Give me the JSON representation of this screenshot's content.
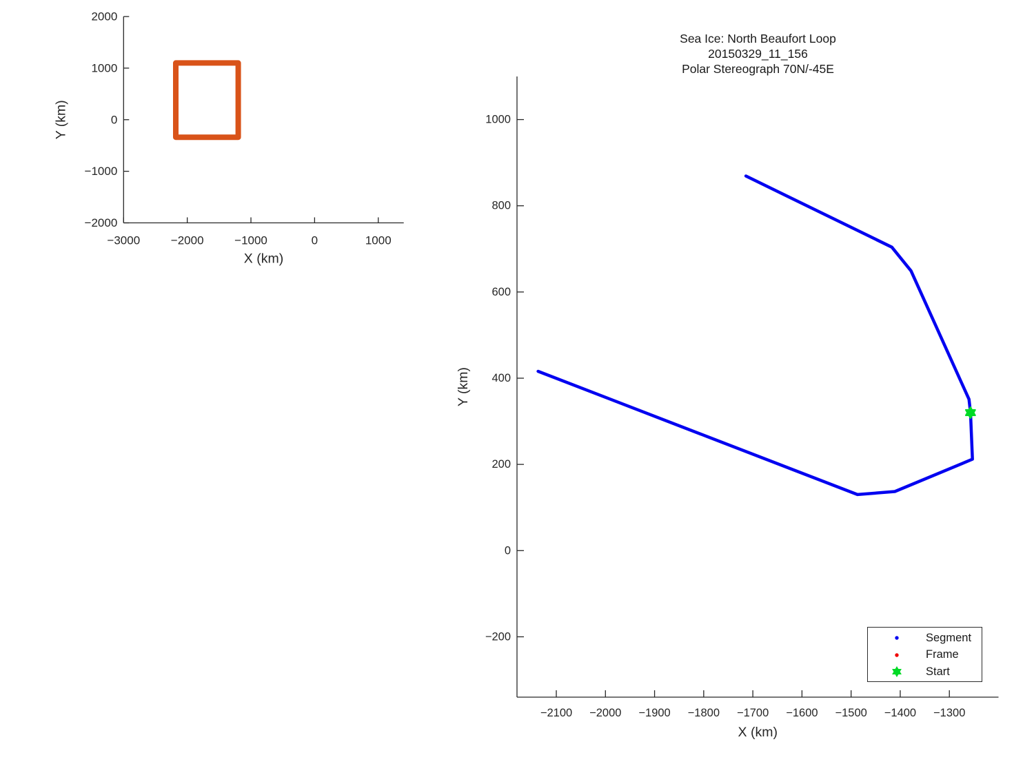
{
  "figure": {
    "background": "#ffffff",
    "axis_color": "#262626",
    "text_color": "#262626"
  },
  "chart_data": [
    {
      "id": "overview",
      "type": "line",
      "title_lines": [],
      "xlabel": "X (km)",
      "ylabel": "Y (km)",
      "xlim": [
        -3000,
        1400
      ],
      "ylim": [
        -2000,
        2000
      ],
      "grid": false,
      "xticks": [
        {
          "value": -3000,
          "label": "−3000"
        },
        {
          "value": -2000,
          "label": "−2000"
        },
        {
          "value": -1000,
          "label": "−1000"
        },
        {
          "value": 0,
          "label": "0"
        },
        {
          "value": 1000,
          "label": "1000"
        }
      ],
      "yticks": [
        {
          "value": -2000,
          "label": "−2000"
        },
        {
          "value": -1000,
          "label": "−1000"
        },
        {
          "value": 0,
          "label": "0"
        },
        {
          "value": 1000,
          "label": "1000"
        },
        {
          "value": 2000,
          "label": "2000"
        }
      ],
      "series": [
        {
          "name": "region-extent-box",
          "color": "#d95319",
          "linewidth": 8,
          "marker": "none",
          "x": [
            -2180,
            -2180,
            -1200,
            -1200,
            -2180
          ],
          "y": [
            -340,
            1100,
            1100,
            -340,
            -340
          ]
        }
      ]
    },
    {
      "id": "trajectory",
      "type": "line",
      "title_lines": [
        "Sea Ice: North Beaufort Loop",
        "20150329_11_156",
        "Polar Stereograph 70N/-45E"
      ],
      "xlabel": "X (km)",
      "ylabel": "Y (km)",
      "xlim": [
        -2180,
        -1200
      ],
      "ylim": [
        -340,
        1100
      ],
      "grid": false,
      "legend_position": "southeast",
      "xticks": [
        {
          "value": -2100,
          "label": "−2100"
        },
        {
          "value": -2000,
          "label": "−2000"
        },
        {
          "value": -1900,
          "label": "−1900"
        },
        {
          "value": -1800,
          "label": "−1800"
        },
        {
          "value": -1700,
          "label": "−1700"
        },
        {
          "value": -1600,
          "label": "−1600"
        },
        {
          "value": -1500,
          "label": "−1500"
        },
        {
          "value": -1400,
          "label": "−1400"
        },
        {
          "value": -1300,
          "label": "−1300"
        }
      ],
      "yticks": [
        {
          "value": -200,
          "label": "−200"
        },
        {
          "value": 0,
          "label": "0"
        },
        {
          "value": 200,
          "label": "200"
        },
        {
          "value": 400,
          "label": "400"
        },
        {
          "value": 600,
          "label": "600"
        },
        {
          "value": 800,
          "label": "800"
        },
        {
          "value": 1000,
          "label": "1000"
        }
      ],
      "series": [
        {
          "name": "Segment",
          "color": "#0404f0",
          "linewidth": 4.5,
          "marker": "dot",
          "x": [
            -1714,
            -1417,
            -1378,
            -1260,
            -1257,
            -1253,
            -1411,
            -1487,
            -2137
          ],
          "y": [
            869,
            704,
            649,
            351,
            320,
            212,
            137,
            130,
            416
          ]
        },
        {
          "name": "Frame",
          "color": "#ef0000",
          "linewidth": 2,
          "marker": "dot",
          "x": [],
          "y": []
        },
        {
          "name": "Start",
          "color": "#00da26",
          "linewidth": 2,
          "marker": "hexagram",
          "markersize": 8,
          "x": [
            -1257
          ],
          "y": [
            320
          ]
        }
      ]
    }
  ]
}
